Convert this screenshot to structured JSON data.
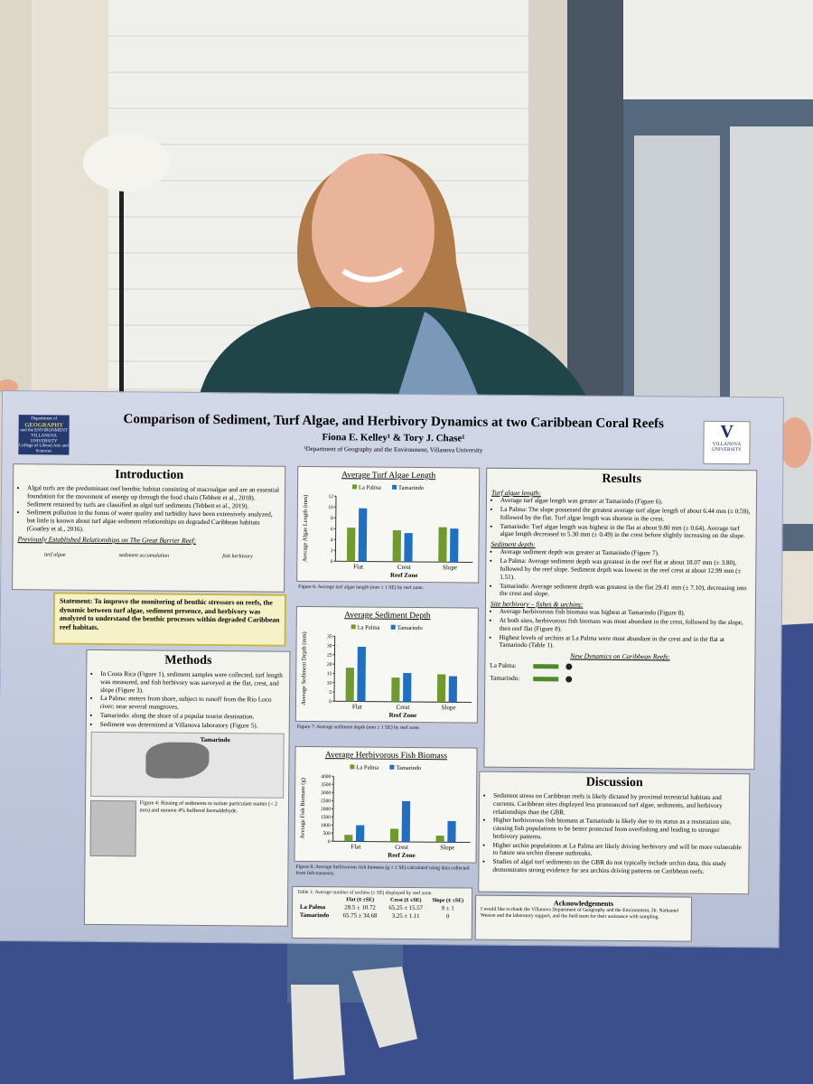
{
  "poster": {
    "title": "Comparison of Sediment, Turf Algae, and Herbivory Dynamics at two Caribbean Coral Reefs",
    "authors": "Fiona E. Kelley¹ & Tory J. Chase¹",
    "affiliation": "¹Department of Geography and the Environment, Villanova University",
    "logo_left": [
      "Department of",
      "GEOGRAPHY",
      "and the ENVIRONMENT",
      "VILLANOVA UNIVERSITY",
      "College of Liberal Arts and Sciences"
    ],
    "logo_right": [
      "V",
      "VILLANOVA",
      "UNIVERSITY"
    ],
    "introduction": {
      "heading": "Introduction",
      "bullets": [
        "Algal turfs are the predominant reef benthic habitat consisting of macroalgae and are an essential foundation for the movement of energy up through the food chain (Tebbett et al., 2018). Sediment retained by turfs are classified as algal turf sediments (Tebbett et al., 2019).",
        "Sediment pollution in the forms of water quality and turbidity have been extensively analyzed, but little is known about turf algae sediment relationships on degraded Caribbean habitats (Goatley et al., 2016)."
      ],
      "subheading": "Previously Established Relationships on The Great Barrier Reef:",
      "icons": [
        "turf algae",
        "sediment accumulation",
        "fish herbivory"
      ]
    },
    "statement": "Statement: To improve the monitoring of benthic stressors on reefs, the dynamic between turf algae, sediment presence, and herbivory was analyzed to understand the benthic processes within degraded Caribbean reef habitats.",
    "methods": {
      "heading": "Methods",
      "bullets": [
        "In Costa Rica (Figure 1), sediment samples were collected, turf length was measured, and fish herbivory was surveyed at the flat, crest, and slope (Figure 3).",
        "La Palma: meters from shore, subject to runoff from the Rio Loco river; near several mangroves.",
        "Tamarindo: along the shore of a popular tourist destination.",
        "Sediment was determined at Villanova laboratory (Figure 5)."
      ],
      "map_label": "Tamarindo",
      "figure_caption": "Figure 4: Rinsing of sediments to isolate particulate matter (< 2 mm) and remove 4% buffered formaldehyde."
    },
    "results": {
      "heading": "Results",
      "sections": [
        {
          "heading": "Turf algae length:",
          "bullets": [
            "Average turf algae length was greater at Tamarindo (Figure 6).",
            "La Palma: The slope possessed the greatest average turf algae length of about 6.44 mm (± 0.59), followed by the flat. Turf algae length was shortest in the crest.",
            "Tamarindo: Turf algae length was highest in the flat at about 9.80 mm (± 0.64). Average turf algae length decreased to 5.30 mm (± 0.49) in the crest before slightly increasing on the slope."
          ]
        },
        {
          "heading": "Sediment depth:",
          "bullets": [
            "Average sediment depth was greater at Tamarindo (Figure 7).",
            "La Palma: Average sediment depth was greatest in the reef flat at about 18.07 mm (± 3.80), followed by the reef slope. Sediment depth was lowest in the reef crest at about 12.99 mm (± 1.51).",
            "Tamarindo: Average sediment depth was greatest in the flat 29.41 mm (± 7.10), decreasing into the crest and slope."
          ]
        },
        {
          "heading": "Site herbivory – fishes & urchins:",
          "bullets": [
            "Average herbivorous fish biomass was highest at Tamarindo (Figure 8).",
            "At both sites, herbivorous fish biomass was most abundant in the crest, followed by the slope, then reef flat (Figure 8).",
            "Highest levels of urchins at La Palma were most abundant in the crest and in the flat at Tamarindo (Table 1)."
          ]
        }
      ],
      "dynamics_heading": "New Dynamics on Caribbean Reefs:",
      "dynamics_sites": [
        "La Palma:",
        "Tamarindo:"
      ]
    },
    "discussion": {
      "heading": "Discussion",
      "bullets": [
        "Sediment stress on Caribbean reefs is likely dictated by proximal terrestrial habitats and currents. Caribbean sites displayed less pronounced turf algae, sediments, and herbivory relationships than the GBR.",
        "Higher herbivorous fish biomass at Tamarindo is likely due to its status as a restoration site, causing fish populations to be better protected from overfishing and leading to stronger herbivory patterns.",
        "Higher urchin populations at La Palma are likely driving herbivory and will be more vulnerable to future sea urchin disease outbreaks.",
        "Studies of algal turf sediments on the GBR do not typically include urchin data, this study demonstrates strong evidence for sea urchins driving patterns on Caribbean reefs."
      ]
    },
    "acknowledgements": {
      "heading": "Acknowledgements",
      "text": "I would like to thank the Villanova Department of Geography and the Environment, Dr. Nathaniel Weston and the laboratory support, and the field team for their assistance with sampling."
    },
    "table": {
      "caption": "Table 1: Average number of urchins (± SE) displayed by reef zone.",
      "header": [
        "",
        "Flat (x̄ ±SE)",
        "Crest (x̄ ±SE)",
        "Slope (x̄ ±SE)"
      ],
      "rows": [
        [
          "La Palma",
          "28.5 ± 10.72",
          "65.25 ± 15.57",
          "9 ± 1"
        ],
        [
          "Tamarindo",
          "65.75 ± 34.68",
          "3.25 ± 1.11",
          "0"
        ]
      ]
    }
  },
  "chart_data": [
    {
      "type": "bar",
      "title": "Average Turf Algae Length",
      "y_label": "Average Algae Length (mm)",
      "x_label": "Reef Zone",
      "caption": "Figure 6: Average turf algae length (mm ± 1 SE) by reef zone.",
      "categories": [
        "Flat",
        "Crest",
        "Slope"
      ],
      "series": [
        {
          "name": "La Palma",
          "color": "#6f9a2c",
          "values": [
            6.2,
            5.8,
            6.44
          ]
        },
        {
          "name": "Tamarindo",
          "color": "#1f6fc4",
          "values": [
            9.8,
            5.3,
            6.2
          ]
        }
      ],
      "ylim": [
        0,
        12
      ],
      "yticks": [
        0,
        2,
        4,
        6,
        8,
        10,
        12
      ]
    },
    {
      "type": "bar",
      "title": "Average Sediment Depth",
      "y_label": "Average Sediment Depth (mm)",
      "x_label": "Reef Zone",
      "caption": "Figure 7: Average sediment depth (mm ± 1 SE) by reef zone.",
      "categories": [
        "Flat",
        "Crest",
        "Slope"
      ],
      "series": [
        {
          "name": "La Palma",
          "color": "#6f9a2c",
          "values": [
            18.07,
            12.99,
            15
          ]
        },
        {
          "name": "Tamarindo",
          "color": "#1f6fc4",
          "values": [
            29.41,
            15.5,
            14
          ]
        }
      ],
      "ylim": [
        0,
        35
      ],
      "yticks": [
        0,
        5,
        10,
        15,
        20,
        25,
        30,
        35
      ]
    },
    {
      "type": "bar",
      "title": "Average Herbivorous Fish Biomass",
      "y_label": "Average Fish Biomass (g)",
      "x_label": "Reef Zone",
      "caption": "Figure 8: Average herbivorous fish biomass (g ± 1 SE) calculated using data collected from fish transects.",
      "categories": [
        "Flat",
        "Crest",
        "Slope"
      ],
      "series": [
        {
          "name": "La Palma",
          "color": "#6f9a2c",
          "values": [
            400,
            800,
            400
          ]
        },
        {
          "name": "Tamarindo",
          "color": "#1f6fc4",
          "values": [
            1000,
            2500,
            1300
          ]
        }
      ],
      "ylim": [
        0,
        4000
      ],
      "yticks": [
        0,
        500,
        1000,
        1500,
        2000,
        2500,
        3000,
        3500,
        4000
      ]
    }
  ]
}
